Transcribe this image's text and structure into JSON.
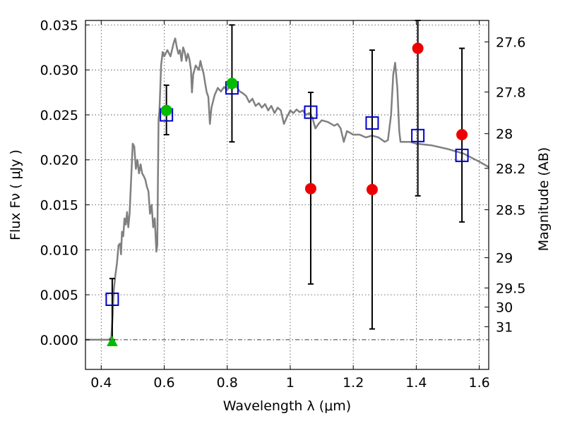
{
  "chart_data": {
    "type": "scatter",
    "xlabel": "Wavelength  λ (μm)",
    "ylabel": "Flux  Fν  ( μJy )",
    "ylabel_right": "Magnitude (AB)",
    "xlim": [
      0.35,
      1.63
    ],
    "ylim": [
      -0.0033,
      0.0355
    ],
    "grid": true,
    "x_ticks": [
      0.4,
      0.6,
      0.8,
      1.0,
      1.2,
      1.4,
      1.6
    ],
    "x_tick_labels": [
      "0.4",
      "0.6",
      "0.8",
      "1",
      "1.2",
      "1.4",
      "1.6"
    ],
    "y_ticks": [
      0.0,
      0.005,
      0.01,
      0.015,
      0.02,
      0.025,
      0.03,
      0.035
    ],
    "y_tick_labels": [
      "0.000",
      "0.005",
      "0.010",
      "0.015",
      "0.020",
      "0.025",
      "0.030",
      "0.035"
    ],
    "right_ticks": [
      {
        "mag": 27.6,
        "label": "27.6"
      },
      {
        "mag": 27.8,
        "label": "27.8"
      },
      {
        "mag": 28.0,
        "label": "28"
      },
      {
        "mag": 28.2,
        "label": "28.2"
      },
      {
        "mag": 28.5,
        "label": "28.5"
      },
      {
        "mag": 29.0,
        "label": "29"
      },
      {
        "mag": 29.5,
        "label": "29.5"
      },
      {
        "mag": 30.0,
        "label": "30"
      },
      {
        "mag": 31.0,
        "label": "31"
      }
    ],
    "model_spectrum": {
      "color": "#808080",
      "points": [
        [
          0.35,
          0.0
        ],
        [
          0.425,
          0.0
        ],
        [
          0.432,
          0.0003
        ],
        [
          0.436,
          0.0025
        ],
        [
          0.44,
          0.0055
        ],
        [
          0.445,
          0.0072
        ],
        [
          0.45,
          0.0085
        ],
        [
          0.455,
          0.0105
        ],
        [
          0.46,
          0.0107
        ],
        [
          0.463,
          0.0095
        ],
        [
          0.466,
          0.012
        ],
        [
          0.47,
          0.0115
        ],
        [
          0.474,
          0.0135
        ],
        [
          0.478,
          0.0128
        ],
        [
          0.482,
          0.0142
        ],
        [
          0.486,
          0.0125
        ],
        [
          0.49,
          0.014
        ],
        [
          0.494,
          0.017
        ],
        [
          0.5,
          0.0218
        ],
        [
          0.505,
          0.0215
        ],
        [
          0.51,
          0.019
        ],
        [
          0.515,
          0.02
        ],
        [
          0.52,
          0.0185
        ],
        [
          0.525,
          0.0195
        ],
        [
          0.53,
          0.0185
        ],
        [
          0.535,
          0.0182
        ],
        [
          0.54,
          0.0178
        ],
        [
          0.545,
          0.017
        ],
        [
          0.55,
          0.0165
        ],
        [
          0.555,
          0.014
        ],
        [
          0.56,
          0.015
        ],
        [
          0.565,
          0.0125
        ],
        [
          0.57,
          0.0135
        ],
        [
          0.575,
          0.0098
        ],
        [
          0.578,
          0.0105
        ],
        [
          0.582,
          0.0245
        ],
        [
          0.585,
          0.0255
        ],
        [
          0.59,
          0.0305
        ],
        [
          0.595,
          0.032
        ],
        [
          0.6,
          0.0315
        ],
        [
          0.61,
          0.0322
        ],
        [
          0.62,
          0.0315
        ],
        [
          0.63,
          0.033
        ],
        [
          0.635,
          0.0335
        ],
        [
          0.64,
          0.0325
        ],
        [
          0.645,
          0.0318
        ],
        [
          0.65,
          0.0322
        ],
        [
          0.655,
          0.031
        ],
        [
          0.66,
          0.0325
        ],
        [
          0.665,
          0.032
        ],
        [
          0.67,
          0.031
        ],
        [
          0.675,
          0.0318
        ],
        [
          0.68,
          0.0312
        ],
        [
          0.685,
          0.03
        ],
        [
          0.688,
          0.0275
        ],
        [
          0.692,
          0.0295
        ],
        [
          0.7,
          0.0305
        ],
        [
          0.71,
          0.03
        ],
        [
          0.715,
          0.031
        ],
        [
          0.72,
          0.0302
        ],
        [
          0.725,
          0.0296
        ],
        [
          0.73,
          0.0285
        ],
        [
          0.735,
          0.0275
        ],
        [
          0.74,
          0.027
        ],
        [
          0.745,
          0.024
        ],
        [
          0.75,
          0.0258
        ],
        [
          0.76,
          0.0272
        ],
        [
          0.77,
          0.028
        ],
        [
          0.78,
          0.0276
        ],
        [
          0.79,
          0.0281
        ],
        [
          0.8,
          0.0278
        ],
        [
          0.81,
          0.0282
        ],
        [
          0.82,
          0.0288
        ],
        [
          0.83,
          0.0281
        ],
        [
          0.84,
          0.0276
        ],
        [
          0.85,
          0.0274
        ],
        [
          0.86,
          0.0271
        ],
        [
          0.87,
          0.0264
        ],
        [
          0.88,
          0.0268
        ],
        [
          0.89,
          0.026
        ],
        [
          0.9,
          0.0263
        ],
        [
          0.91,
          0.0258
        ],
        [
          0.92,
          0.0262
        ],
        [
          0.93,
          0.0255
        ],
        [
          0.94,
          0.026
        ],
        [
          0.95,
          0.0252
        ],
        [
          0.96,
          0.0258
        ],
        [
          0.97,
          0.0255
        ],
        [
          0.98,
          0.024
        ],
        [
          0.99,
          0.0248
        ],
        [
          1.0,
          0.0255
        ],
        [
          1.01,
          0.0252
        ],
        [
          1.02,
          0.0256
        ],
        [
          1.03,
          0.0253
        ],
        [
          1.04,
          0.0255
        ],
        [
          1.05,
          0.025
        ],
        [
          1.06,
          0.0252
        ],
        [
          1.07,
          0.0247
        ],
        [
          1.08,
          0.0235
        ],
        [
          1.09,
          0.024
        ],
        [
          1.1,
          0.0244
        ],
        [
          1.12,
          0.0242
        ],
        [
          1.14,
          0.0238
        ],
        [
          1.15,
          0.024
        ],
        [
          1.16,
          0.0235
        ],
        [
          1.17,
          0.022
        ],
        [
          1.18,
          0.0232
        ],
        [
          1.19,
          0.023
        ],
        [
          1.2,
          0.0228
        ],
        [
          1.22,
          0.0228
        ],
        [
          1.24,
          0.0225
        ],
        [
          1.26,
          0.0227
        ],
        [
          1.28,
          0.0225
        ],
        [
          1.3,
          0.022
        ],
        [
          1.31,
          0.0222
        ],
        [
          1.32,
          0.025
        ],
        [
          1.327,
          0.0295
        ],
        [
          1.333,
          0.0308
        ],
        [
          1.34,
          0.028
        ],
        [
          1.346,
          0.0232
        ],
        [
          1.35,
          0.022
        ],
        [
          1.38,
          0.022
        ],
        [
          1.4,
          0.0218
        ],
        [
          1.45,
          0.0216
        ],
        [
          1.5,
          0.0212
        ],
        [
          1.55,
          0.0207
        ],
        [
          1.6,
          0.0198
        ],
        [
          1.63,
          0.0192
        ]
      ]
    },
    "series": [
      {
        "marker": "open-square",
        "color": "#0000cc",
        "points": [
          {
            "x": 0.435,
            "y": 0.0045
          },
          {
            "x": 0.607,
            "y": 0.025
          },
          {
            "x": 0.815,
            "y": 0.028
          },
          {
            "x": 1.065,
            "y": 0.0253
          },
          {
            "x": 1.26,
            "y": 0.0241
          },
          {
            "x": 1.405,
            "y": 0.0227
          },
          {
            "x": 1.545,
            "y": 0.0205
          }
        ]
      },
      {
        "marker": "circle",
        "color": "#ee0000",
        "points": [
          {
            "x": 1.065,
            "y": 0.0168
          },
          {
            "x": 1.26,
            "y": 0.0167
          },
          {
            "x": 1.405,
            "y": 0.0324
          },
          {
            "x": 1.545,
            "y": 0.0228
          }
        ]
      },
      {
        "marker": "circle",
        "color": "#00bb00",
        "points": [
          {
            "x": 0.607,
            "y": 0.0255
          },
          {
            "x": 0.815,
            "y": 0.0285
          }
        ]
      },
      {
        "marker": "triangle",
        "color": "#00bb00",
        "points": [
          {
            "x": 0.435,
            "y": -0.0002
          }
        ]
      }
    ],
    "error_bars": [
      {
        "x": 0.435,
        "low": 0.0,
        "high": 0.0068
      },
      {
        "x": 0.607,
        "low": 0.0228,
        "high": 0.0283
      },
      {
        "x": 0.815,
        "low": 0.022,
        "high": 0.035
      },
      {
        "x": 1.065,
        "low": 0.0062,
        "high": 0.0275
      },
      {
        "x": 1.26,
        "low": 0.0012,
        "high": 0.0322
      },
      {
        "x": 1.405,
        "low": 0.016,
        "high": 0.0355
      },
      {
        "x": 1.545,
        "low": 0.0131,
        "high": 0.0324
      }
    ]
  }
}
